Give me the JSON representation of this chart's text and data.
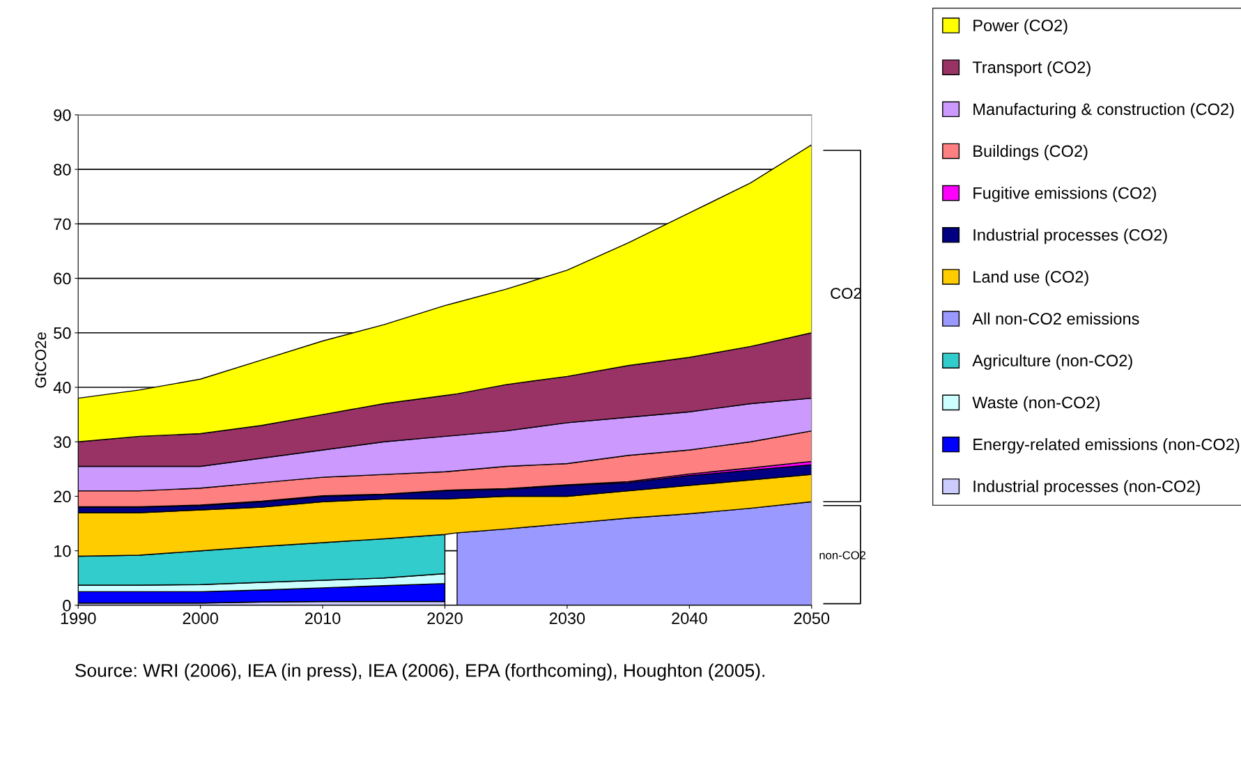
{
  "chart_data": {
    "type": "area",
    "stacked": true,
    "ylabel": "GtCO2e",
    "x": [
      1990,
      1995,
      2000,
      2005,
      2010,
      2015,
      2020,
      2021,
      2025,
      2030,
      2035,
      2040,
      2045,
      2050
    ],
    "series": [
      {
        "name": "Industrial processes (non-CO2)",
        "color": "#ccccff",
        "values": [
          0.4,
          0.4,
          0.4,
          0.6,
          0.7,
          0.7,
          0.7,
          null,
          null,
          null,
          null,
          null,
          null,
          null
        ]
      },
      {
        "name": "Energy-related emissions (non-CO2)",
        "color": "#0000ff",
        "values": [
          2.1,
          2.1,
          2.1,
          2.2,
          2.5,
          2.9,
          3.3,
          null,
          null,
          null,
          null,
          null,
          null,
          null
        ]
      },
      {
        "name": "Waste (non-CO2)",
        "color": "#ccffff",
        "values": [
          1.2,
          1.2,
          1.3,
          1.4,
          1.4,
          1.4,
          1.8,
          null,
          null,
          null,
          null,
          null,
          null,
          null
        ]
      },
      {
        "name": "Agriculture (non-CO2)",
        "color": "#33cccc",
        "values": [
          5.3,
          5.5,
          6.2,
          6.6,
          6.9,
          7.2,
          7.2,
          null,
          null,
          null,
          null,
          null,
          null,
          null
        ]
      },
      {
        "name": "All non-CO2 emissions",
        "color": "#9999ff",
        "values": [
          null,
          null,
          null,
          null,
          null,
          null,
          null,
          13.3,
          14,
          15,
          16,
          16.8,
          17.8,
          19
        ]
      },
      {
        "name": "Land use (CO2)",
        "color": "#ffcc00",
        "values": [
          8,
          7.8,
          7.5,
          7.2,
          7.5,
          7.3,
          6.5,
          6.3,
          6,
          5,
          5,
          5.2,
          5.2,
          5
        ]
      },
      {
        "name": "Industrial processes (CO2)",
        "color": "#000080",
        "values": [
          1,
          1,
          0.8,
          1,
          1,
          0.8,
          1.5,
          1.5,
          1.3,
          2,
          1.5,
          1.8,
          1.8,
          1.8
        ]
      },
      {
        "name": "Fugitive emissions (CO2)",
        "color": "#ff00ff",
        "values": [
          0.1,
          0.1,
          0.1,
          0.1,
          0.1,
          0.1,
          0.1,
          0.1,
          0.1,
          0.1,
          0.2,
          0.3,
          0.4,
          0.6
        ]
      },
      {
        "name": "Buildings (CO2)",
        "color": "#ff8080",
        "values": [
          2.9,
          2.9,
          3.1,
          3.4,
          3.4,
          3.6,
          3.4,
          3.5,
          4.1,
          3.9,
          4.8,
          4.4,
          4.8,
          5.6
        ]
      },
      {
        "name": "Manufacturing & construction (CO2)",
        "color": "#cc99ff",
        "values": [
          4.5,
          4.5,
          4,
          4.5,
          5,
          6,
          6.5,
          6.5,
          6.5,
          7.5,
          7,
          7,
          7,
          6
        ]
      },
      {
        "name": "Transport (CO2)",
        "color": "#993366",
        "values": [
          4.5,
          5.5,
          6,
          6,
          6.5,
          7,
          7.5,
          7.6,
          8.5,
          8.5,
          9.5,
          10,
          10.5,
          12
        ]
      },
      {
        "name": "Power (CO2)",
        "color": "#ffff00",
        "values": [
          8,
          8.5,
          10,
          12,
          13.5,
          14.5,
          16.5,
          16.8,
          17.5,
          19.5,
          22.5,
          26.5,
          30,
          34.5
        ]
      }
    ],
    "xlim": [
      1990,
      2050
    ],
    "xticks": [
      1990,
      2000,
      2010,
      2020,
      2030,
      2040,
      2050
    ],
    "ylim": [
      0,
      90
    ],
    "yticks": [
      0,
      10,
      20,
      30,
      40,
      50,
      60,
      70,
      80,
      90
    ],
    "grid": "y",
    "legend": "right",
    "annotations": [
      "CO2",
      "non-CO2",
      "Source: WRI (2006), IEA (in press), IEA (2006), EPA (forthcoming), Houghton (2005)."
    ]
  }
}
